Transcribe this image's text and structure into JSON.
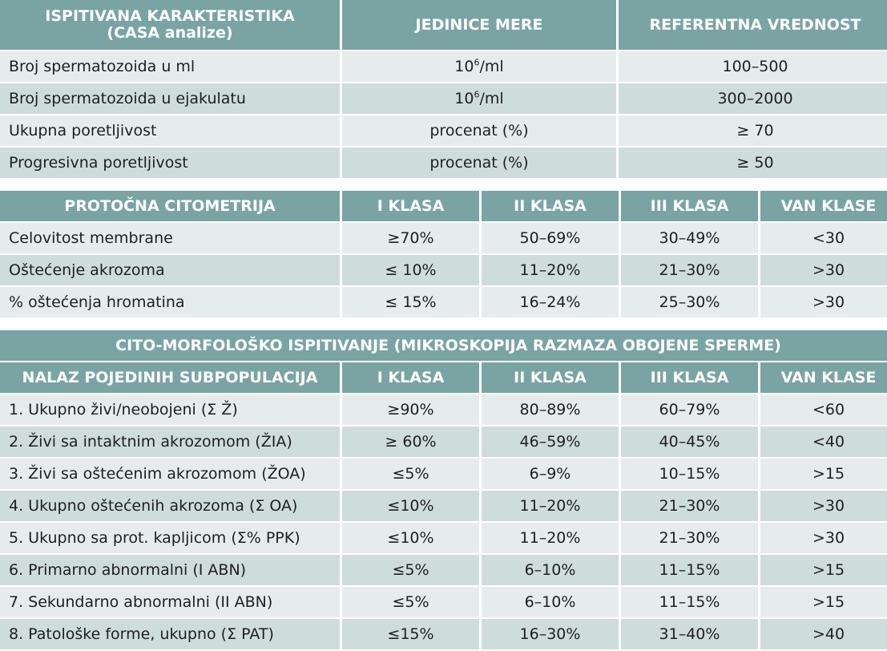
{
  "casa": {
    "header": {
      "col1_line1": "ISPITIVANA KARAKTERISTIKA",
      "col1_line2": "(CASA analize)",
      "col2": "JEDINICE MERE",
      "col3": "REFERENTNA VREDNOST"
    },
    "rows": [
      {
        "label": "Broj spermatozoida u ml",
        "unit_base": "10",
        "unit_sup": "6",
        "unit_rest": "/ml",
        "ref": "100–500"
      },
      {
        "label": "Broj spermatozoida u ejakulatu",
        "unit_base": "10",
        "unit_sup": "6",
        "unit_rest": "/ml",
        "ref": "300–2000"
      },
      {
        "label": "Ukupna poretljivost",
        "unit": "procenat (%)",
        "ref": "≥ 70"
      },
      {
        "label": "Progresivna poretljivost",
        "unit": "procenat (%)",
        "ref": "≥ 50"
      }
    ]
  },
  "citometrija": {
    "header": [
      "PROTOČNA CITOMETRIJA",
      "I KLASA",
      "II KLASA",
      "III KLASA",
      "VAN KLASE"
    ],
    "rows": [
      [
        "Celovitost membrane",
        "≥70%",
        "50–69%",
        "30–49%",
        "<30"
      ],
      [
        "Oštećenje akrozoma",
        "≤ 10%",
        "11–20%",
        "21–30%",
        ">30"
      ],
      [
        "% oštećenja hromatina",
        "≤ 15%",
        "16–24%",
        "25–30%",
        ">30"
      ]
    ]
  },
  "morfologija": {
    "title": "CITO-MORFOLOŠKO ISPITIVANJE (MIKROSKOPIJA RAZMAZA OBOJENE SPERME)",
    "header": [
      "NALAZ POJEDINIH SUBPOPULACIJA",
      "I KLASA",
      "II KLASA",
      "III KLASA",
      "VAN KLASE"
    ],
    "rows": [
      [
        "1. Ukupno živi/neobojeni (Σ Ž)",
        "≥90%",
        "80–89%",
        "60–79%",
        "<60"
      ],
      [
        "2. Živi sa intaktnim akrozomom (ŽIA)",
        "≥ 60%",
        "46–59%",
        "40–45%",
        "<40"
      ],
      [
        "3. Živi sa oštećenim akrozomom (ŽOA)",
        "≤5%",
        "6–9%",
        "10–15%",
        ">15"
      ],
      [
        "4. Ukupno oštećenih akrozoma (Σ OA)",
        "≤10%",
        "11–20%",
        "21–30%",
        ">30"
      ],
      [
        "5. Ukupno sa prot. kapljicom (Σ% PPK)",
        "≤10%",
        "11–20%",
        "21–30%",
        ">30"
      ],
      [
        "6. Primarno abnormalni (I ABN)",
        "≤5%",
        "6–10%",
        "11–15%",
        ">15"
      ],
      [
        "7. Sekundarno abnormalni (II ABN)",
        "≤5%",
        "6–10%",
        "11–15%",
        ">15"
      ],
      [
        "8. Patološke forme, ukupno (Σ PAT)",
        "≤15%",
        "16–30%",
        "31–40%",
        ">40"
      ]
    ]
  },
  "colors": {
    "header_bg": "#7aa3a4",
    "row_light": "#e6ecec",
    "row_dark": "#cfdcdc"
  }
}
